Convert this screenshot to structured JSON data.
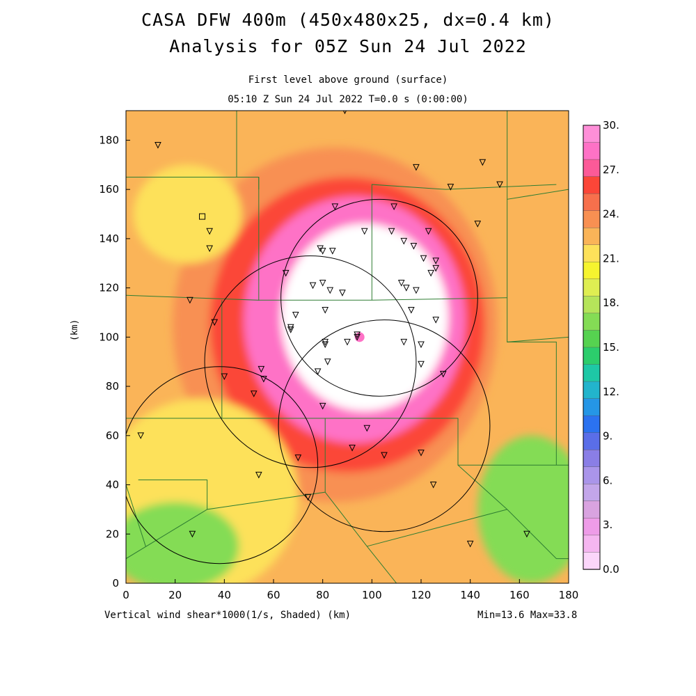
{
  "header": {
    "title_line1": "CASA DFW 400m (450x480x25, dx=0.4 km)",
    "title_line2": "Analysis for 05Z Sun 24 Jul 2022",
    "subtitle_line1": "First level above ground (surface)",
    "subtitle_line2": "05:10 Z Sun 24 Jul 2022   T=0.0 s (0:00:00)"
  },
  "footer": {
    "field_label": "Vertical wind shear*1000(1/s, Shaded)  (km)",
    "minmax": "Min=13.6 Max=33.8"
  },
  "axes": {
    "ylabel": "(km)",
    "x_range": [
      0,
      180
    ],
    "y_range": [
      0,
      192
    ],
    "x_ticks": [
      "0",
      "20",
      "40",
      "60",
      "80",
      "100",
      "120",
      "140",
      "160",
      "180"
    ],
    "y_ticks": [
      "0",
      "20",
      "40",
      "60",
      "80",
      "100",
      "120",
      "140",
      "160",
      "180"
    ]
  },
  "colorbar": {
    "labels": [
      "30.",
      "27.",
      "24.",
      "21.",
      "18.",
      "15.",
      "12.",
      "9.",
      "6.",
      "3.",
      "0.0"
    ],
    "colors": [
      "#fe8fd8",
      "#fe72c6",
      "#fc5a98",
      "#fb4638",
      "#f7704c",
      "#f89052",
      "#fab458",
      "#fde15a",
      "#f6f42f",
      "#dfee52",
      "#b5e45a",
      "#84dc55",
      "#56d250",
      "#2ccd6c",
      "#1ec8a6",
      "#22b4cc",
      "#2596e6",
      "#2b72f0",
      "#5a6ee8",
      "#8a7ee6",
      "#aa95ea",
      "#c3a6ea",
      "#d9a3e0",
      "#ee9ce8",
      "#f5b6f0",
      "#fbd6fa"
    ]
  },
  "field": {
    "centers": [
      {
        "x": 85,
        "y": 105
      },
      {
        "x": 30,
        "y": 35
      },
      {
        "x": 165,
        "y": 30
      }
    ],
    "peak_center": {
      "x": 95,
      "y": 100
    },
    "colors": {
      "white": "#ffffff",
      "pink": "#fe72c6",
      "red": "#fb4638",
      "orange": "#f89052",
      "yellow": "#fde15a",
      "green": "#84dc55"
    }
  },
  "radars": [
    {
      "x": 103,
      "y": 116,
      "r": 40
    },
    {
      "x": 75,
      "y": 90,
      "r": 43
    },
    {
      "x": 105,
      "y": 64,
      "r": 43
    },
    {
      "x": 38,
      "y": 48,
      "r": 40
    }
  ],
  "stations": [
    [
      13,
      178
    ],
    [
      89,
      192
    ],
    [
      118,
      169
    ],
    [
      132,
      161
    ],
    [
      145,
      171
    ],
    [
      152,
      162
    ],
    [
      34,
      143
    ],
    [
      34,
      136
    ],
    [
      85,
      153
    ],
    [
      109,
      153
    ],
    [
      97,
      143
    ],
    [
      108,
      143
    ],
    [
      123,
      143
    ],
    [
      143,
      146
    ],
    [
      79,
      136
    ],
    [
      80,
      135
    ],
    [
      84,
      135
    ],
    [
      113,
      139
    ],
    [
      117,
      137
    ],
    [
      121,
      132
    ],
    [
      126,
      131
    ],
    [
      126,
      128
    ],
    [
      124,
      126
    ],
    [
      65,
      126
    ],
    [
      76,
      121
    ],
    [
      80,
      122
    ],
    [
      83,
      119
    ],
    [
      88,
      118
    ],
    [
      112,
      122
    ],
    [
      114,
      120
    ],
    [
      118,
      119
    ],
    [
      26,
      115
    ],
    [
      69,
      109
    ],
    [
      81,
      111
    ],
    [
      116,
      111
    ],
    [
      126,
      107
    ],
    [
      36,
      106
    ],
    [
      67,
      104
    ],
    [
      67,
      103
    ],
    [
      94,
      101
    ],
    [
      94,
      100
    ],
    [
      113,
      98
    ],
    [
      120,
      97
    ],
    [
      81,
      98
    ],
    [
      81,
      97
    ],
    [
      90,
      98
    ],
    [
      120,
      89
    ],
    [
      82,
      90
    ],
    [
      78,
      86
    ],
    [
      129,
      85
    ],
    [
      55,
      87
    ],
    [
      56,
      83
    ],
    [
      40,
      84
    ],
    [
      52,
      77
    ],
    [
      80,
      72
    ],
    [
      98,
      63
    ],
    [
      6,
      60
    ],
    [
      92,
      55
    ],
    [
      105,
      52
    ],
    [
      120,
      53
    ],
    [
      70,
      51
    ],
    [
      54,
      44
    ],
    [
      125,
      40
    ],
    [
      74,
      35
    ],
    [
      27,
      20
    ],
    [
      140,
      16
    ],
    [
      163,
      20
    ]
  ],
  "square_marker": {
    "x": 31,
    "y": 149
  }
}
